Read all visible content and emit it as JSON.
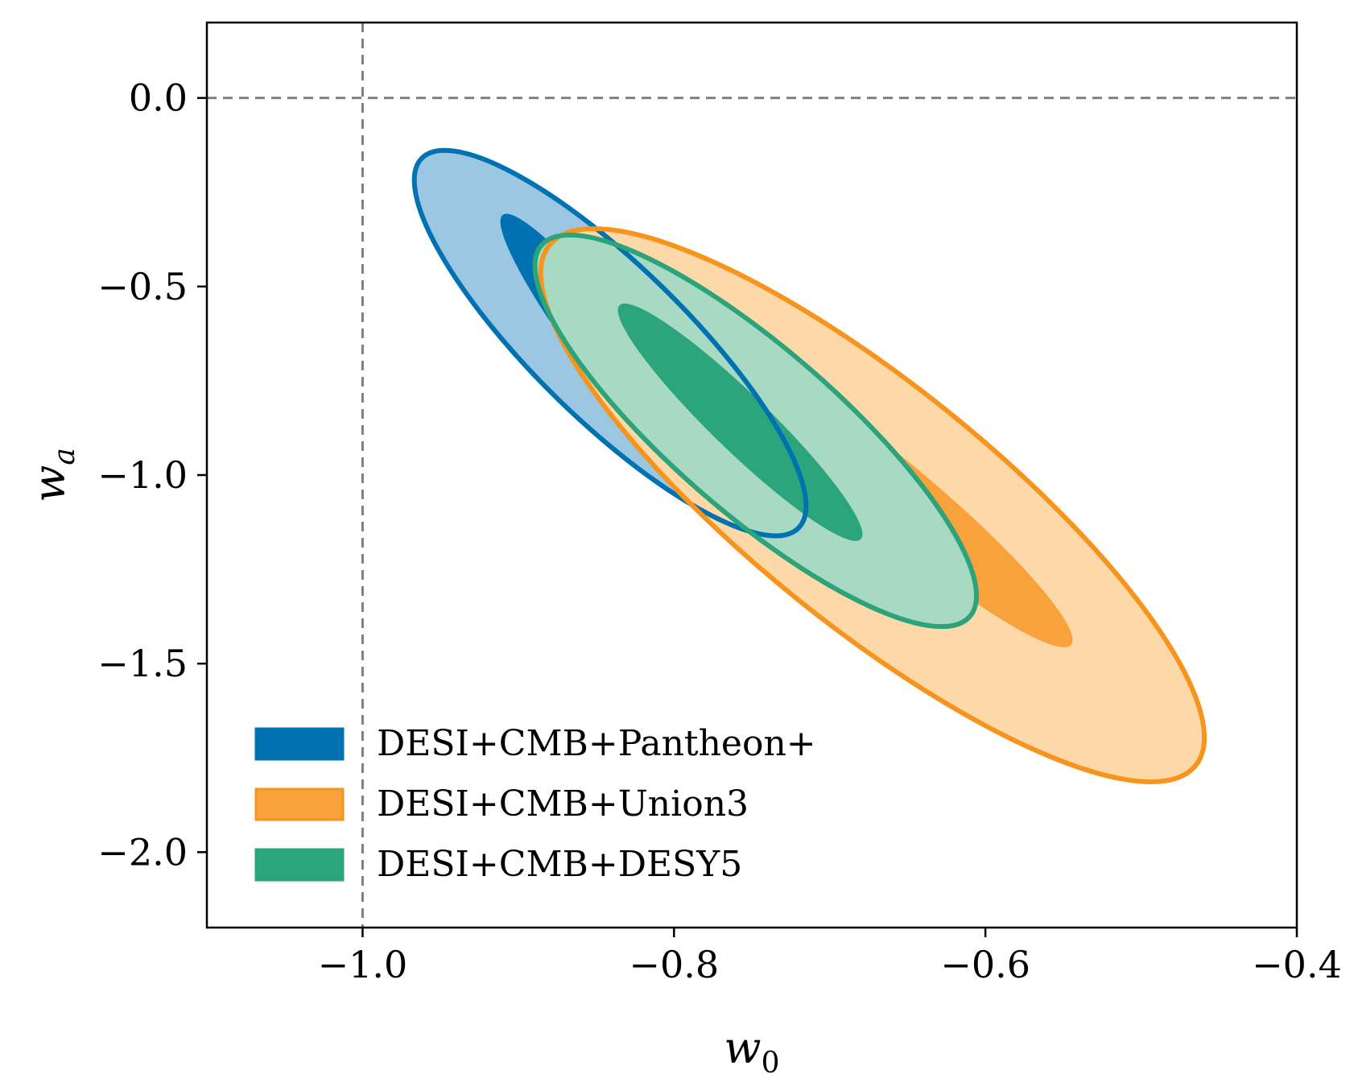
{
  "chart_data": {
    "type": "contour",
    "xlabel": "w",
    "xlabel_sub": "0",
    "ylabel": "w",
    "ylabel_sub": "a",
    "xlim": [
      -1.1,
      -0.4
    ],
    "ylim": [
      -2.2,
      0.2
    ],
    "xticks": [
      -1.0,
      -0.8,
      -0.6,
      -0.4
    ],
    "xtick_labels": [
      "−1.0",
      "−0.8",
      "−0.6",
      "−0.4"
    ],
    "yticks": [
      0.0,
      -0.5,
      -1.0,
      -1.5,
      -2.0
    ],
    "ytick_labels": [
      "0.0",
      "−0.5",
      "−1.0",
      "−1.5",
      "−2.0"
    ],
    "reference_lines": {
      "x": -1.0,
      "y": 0.0,
      "style": "dashed",
      "color": "#808080"
    },
    "legend_position": "lower-left",
    "series": [
      {
        "name": "DESI+CMB+Pantheon+",
        "color": "#0072b2",
        "inner_fill": "#0072b2",
        "outer_fill": "#9cc7e2",
        "center": [
          -0.827,
          -0.75
        ],
        "sigma1": {
          "ends": [
            [
              -0.91,
              -0.31
            ],
            [
              -0.745,
              -1.19
            ]
          ],
          "half_width": 0.15
        },
        "sigma2": {
          "ends": [
            [
              -0.962,
              -0.16
            ],
            [
              -0.72,
              -1.14
            ]
          ],
          "half_width": 0.29
        }
      },
      {
        "name": "DESI+CMB+Union3",
        "color": "#f7941d",
        "inner_fill": "#f7a23a",
        "outer_fill": "#fdd8a8",
        "center": [
          -0.65,
          -1.05
        ],
        "sigma1": {
          "ends": [
            [
              -0.76,
              -0.7
            ],
            [
              -0.545,
              -1.45
            ]
          ],
          "half_width": 0.16
        },
        "sigma2": {
          "ends": [
            [
              -0.88,
              -0.39
            ],
            [
              -0.465,
              -1.77
            ]
          ],
          "half_width": 0.29
        }
      },
      {
        "name": "DESI+CMB+DESY5",
        "color": "#2ca37b",
        "inner_fill": "#2da57c",
        "outer_fill": "#a8d9c2",
        "center": [
          -0.745,
          -0.885
        ],
        "sigma1": {
          "ends": [
            [
              -0.835,
              -0.55
            ],
            [
              -0.68,
              -1.17
            ]
          ],
          "half_width": 0.17
        },
        "sigma2": {
          "ends": [
            [
              -0.885,
              -0.39
            ],
            [
              -0.61,
              -1.375
            ]
          ],
          "half_width": 0.29
        }
      }
    ]
  }
}
